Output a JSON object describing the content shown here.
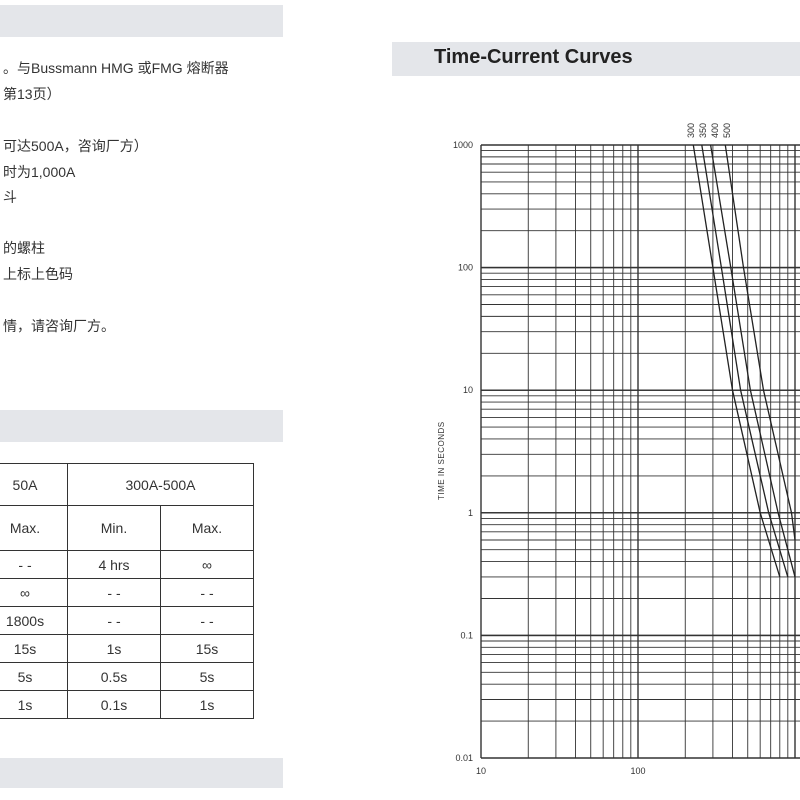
{
  "left_column": {
    "text_lines": [
      "。与Bussmann HMG 或FMG 熔断器",
      "第13页）",
      "可达500A，咨询厂方）",
      "时为1,000A",
      "斗",
      "的螺柱",
      "上标上色码",
      "情，请咨询厂方。"
    ],
    "table": {
      "group_headers": [
        "50A",
        "300A-500A"
      ],
      "sub_headers": [
        "Max.",
        "Min.",
        "Max."
      ],
      "rows": [
        [
          "- -",
          "4 hrs",
          "∞"
        ],
        [
          "∞",
          "- -",
          "- -"
        ],
        [
          "1800s",
          "- -",
          "- -"
        ],
        [
          "15s",
          "1s",
          "15s"
        ],
        [
          "5s",
          "0.5s",
          "5s"
        ],
        [
          "1s",
          "0.1s",
          "1s"
        ]
      ]
    }
  },
  "right_column": {
    "section_title": "Time-Current Curves",
    "chart_data": {
      "type": "line",
      "title": "",
      "ylabel": "TIME IN SECONDS",
      "xlabel": "",
      "y_scale": "log",
      "x_scale": "log",
      "ylim": [
        0.01,
        1000
      ],
      "xlim": [
        10,
        1000
      ],
      "y_tick_labels": [
        "1000",
        "100",
        "10",
        "1",
        "0.1",
        "0.01"
      ],
      "x_tick_labels": [
        "10",
        "100"
      ],
      "curve_labels": [
        "300",
        "350",
        "400",
        "500"
      ],
      "grid": true,
      "series": [
        {
          "name": "300",
          "x": [
            225,
            300,
            400,
            600,
            800
          ],
          "y": [
            1000,
            100,
            10,
            1,
            0.3
          ]
        },
        {
          "name": "350",
          "x": [
            255,
            340,
            450,
            680,
            900
          ],
          "y": [
            1000,
            100,
            10,
            1,
            0.3
          ]
        },
        {
          "name": "400",
          "x": [
            290,
            390,
            520,
            780,
            1000
          ],
          "y": [
            1000,
            100,
            10,
            1,
            0.3
          ]
        },
        {
          "name": "500",
          "x": [
            360,
            470,
            630,
            950,
            1000
          ],
          "y": [
            1000,
            100,
            10,
            1,
            0.6
          ]
        }
      ]
    }
  }
}
